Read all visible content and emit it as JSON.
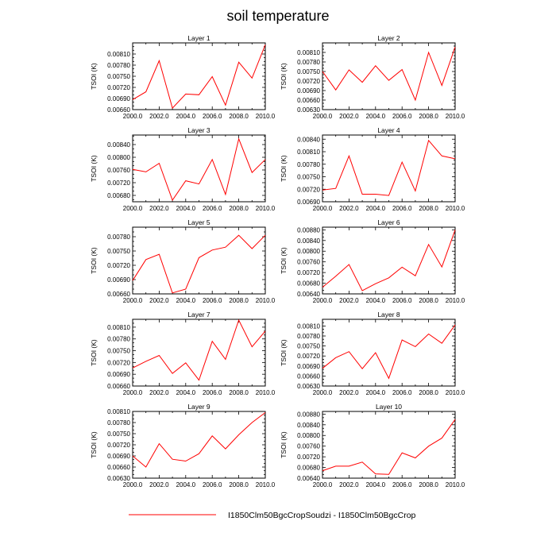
{
  "page_title": "soil temperature",
  "legend": {
    "label": "I1850Clm50BgcCropSoudzi - I1850Clm50BgcCrop",
    "color": "#ff0000"
  },
  "chart_data": [
    {
      "type": "line",
      "title": "Layer 1",
      "ylabel": "TSOI  (K)",
      "x": [
        2000,
        2001,
        2002,
        2003,
        2004,
        2005,
        2006,
        2007,
        2008,
        2009,
        2010
      ],
      "xlim": [
        2000,
        2010
      ],
      "xticks": [
        "2000.0",
        "2002.0",
        "2004.0",
        "2006.0",
        "2008.0",
        "2010.0"
      ],
      "ylim": [
        0.0066,
        0.0084
      ],
      "yticks": [
        "0.00660",
        "0.00690",
        "0.00720",
        "0.00750",
        "0.00780",
        "0.00810"
      ],
      "series": [
        {
          "color": "#ff0000",
          "values": [
            0.00687,
            0.00708,
            0.00792,
            0.00664,
            0.00702,
            0.007,
            0.00749,
            0.00672,
            0.00788,
            0.00745,
            0.00835
          ]
        }
      ]
    },
    {
      "type": "line",
      "title": "Layer 2",
      "ylabel": "TSOI  (K)",
      "x": [
        2000,
        2001,
        2002,
        2003,
        2004,
        2005,
        2006,
        2007,
        2008,
        2009,
        2010
      ],
      "xlim": [
        2000,
        2010
      ],
      "xticks": [
        "2000.0",
        "2002.0",
        "2004.0",
        "2006.0",
        "2008.0",
        "2010.0"
      ],
      "ylim": [
        0.0063,
        0.0084
      ],
      "yticks": [
        "0.00630",
        "0.00660",
        "0.00690",
        "0.00720",
        "0.00750",
        "0.00780",
        "0.00810"
      ],
      "series": [
        {
          "color": "#ff0000",
          "values": [
            0.0075,
            0.00692,
            0.00755,
            0.00716,
            0.00768,
            0.00722,
            0.00756,
            0.0066,
            0.0081,
            0.00706,
            0.00827
          ]
        }
      ]
    },
    {
      "type": "line",
      "title": "Layer 3",
      "ylabel": "TSOI  (K)",
      "x": [
        2000,
        2001,
        2002,
        2003,
        2004,
        2005,
        2006,
        2007,
        2008,
        2009,
        2010
      ],
      "xlim": [
        2000,
        2010
      ],
      "xticks": [
        "2000.0",
        "2002.0",
        "2004.0",
        "2006.0",
        "2008.0",
        "2010.0"
      ],
      "ylim": [
        0.0066,
        0.0087
      ],
      "yticks": [
        "0.00680",
        "0.00720",
        "0.00760",
        "0.00800",
        "0.00840"
      ],
      "series": [
        {
          "color": "#ff0000",
          "values": [
            0.00762,
            0.00754,
            0.00781,
            0.00665,
            0.00726,
            0.00716,
            0.00793,
            0.00683,
            0.00858,
            0.00752,
            0.00793
          ]
        }
      ]
    },
    {
      "type": "line",
      "title": "Layer 4",
      "ylabel": "TSOI  (K)",
      "x": [
        2000,
        2001,
        2002,
        2003,
        2004,
        2005,
        2006,
        2007,
        2008,
        2009,
        2010
      ],
      "xlim": [
        2000,
        2010
      ],
      "xticks": [
        "2000.0",
        "2002.0",
        "2004.0",
        "2006.0",
        "2008.0",
        "2010.0"
      ],
      "ylim": [
        0.0069,
        0.0085
      ],
      "yticks": [
        "0.00690",
        "0.00720",
        "0.00750",
        "0.00780",
        "0.00810",
        "0.00840"
      ],
      "series": [
        {
          "color": "#ff0000",
          "values": [
            0.00718,
            0.00722,
            0.008,
            0.00708,
            0.00708,
            0.00705,
            0.00785,
            0.00716,
            0.00837,
            0.008,
            0.00793
          ]
        }
      ]
    },
    {
      "type": "line",
      "title": "Layer 5",
      "ylabel": "TSOI  (K)",
      "x": [
        2000,
        2001,
        2002,
        2003,
        2004,
        2005,
        2006,
        2007,
        2008,
        2009,
        2010
      ],
      "xlim": [
        2000,
        2010
      ],
      "xticks": [
        "2000.0",
        "2002.0",
        "2004.0",
        "2006.0",
        "2008.0",
        "2010.0"
      ],
      "ylim": [
        0.0066,
        0.008
      ],
      "yticks": [
        "0.00660",
        "0.00690",
        "0.00720",
        "0.00750",
        "0.00780"
      ],
      "series": [
        {
          "color": "#ff0000",
          "values": [
            0.00688,
            0.00732,
            0.00743,
            0.00662,
            0.0067,
            0.00736,
            0.00752,
            0.00758,
            0.00783,
            0.00755,
            0.00783
          ]
        }
      ]
    },
    {
      "type": "line",
      "title": "Layer 6",
      "ylabel": "TSOI  (K)",
      "x": [
        2000,
        2001,
        2002,
        2003,
        2004,
        2005,
        2006,
        2007,
        2008,
        2009,
        2010
      ],
      "xlim": [
        2000,
        2010
      ],
      "xticks": [
        "2000.0",
        "2002.0",
        "2004.0",
        "2006.0",
        "2008.0",
        "2010.0"
      ],
      "ylim": [
        0.0064,
        0.0089
      ],
      "yticks": [
        "0.00640",
        "0.00680",
        "0.00720",
        "0.00760",
        "0.00800",
        "0.00840",
        "0.00880"
      ],
      "series": [
        {
          "color": "#ff0000",
          "values": [
            0.00665,
            0.00706,
            0.0075,
            0.00652,
            0.00678,
            0.007,
            0.0074,
            0.00708,
            0.00825,
            0.00741,
            0.0088
          ]
        }
      ]
    },
    {
      "type": "line",
      "title": "Layer 7",
      "ylabel": "TSOI  (K)",
      "x": [
        2000,
        2001,
        2002,
        2003,
        2004,
        2005,
        2006,
        2007,
        2008,
        2009,
        2010
      ],
      "xlim": [
        2000,
        2010
      ],
      "xticks": [
        "2000.0",
        "2002.0",
        "2004.0",
        "2006.0",
        "2008.0",
        "2010.0"
      ],
      "ylim": [
        0.0066,
        0.0083
      ],
      "yticks": [
        "0.00660",
        "0.00690",
        "0.00720",
        "0.00750",
        "0.00780",
        "0.00810"
      ],
      "series": [
        {
          "color": "#ff0000",
          "values": [
            0.00706,
            0.00723,
            0.00738,
            0.00692,
            0.00719,
            0.00675,
            0.00774,
            0.00728,
            0.00828,
            0.0076,
            0.008
          ]
        }
      ]
    },
    {
      "type": "line",
      "title": "Layer 8",
      "ylabel": "TSOI  (K)",
      "x": [
        2000,
        2001,
        2002,
        2003,
        2004,
        2005,
        2006,
        2007,
        2008,
        2009,
        2010
      ],
      "xlim": [
        2000,
        2010
      ],
      "xticks": [
        "2000.0",
        "2002.0",
        "2004.0",
        "2006.0",
        "2008.0",
        "2010.0"
      ],
      "ylim": [
        0.0063,
        0.0083
      ],
      "yticks": [
        "0.00630",
        "0.00660",
        "0.00690",
        "0.00720",
        "0.00750",
        "0.00780",
        "0.00810"
      ],
      "series": [
        {
          "color": "#ff0000",
          "values": [
            0.00683,
            0.00715,
            0.00733,
            0.00682,
            0.0073,
            0.00653,
            0.00768,
            0.00748,
            0.00786,
            0.00758,
            0.00813
          ]
        }
      ]
    },
    {
      "type": "line",
      "title": "Layer 9",
      "ylabel": "TSOI  (K)",
      "x": [
        2000,
        2001,
        2002,
        2003,
        2004,
        2005,
        2006,
        2007,
        2008,
        2009,
        2010
      ],
      "xlim": [
        2000,
        2010
      ],
      "xticks": [
        "2000.0",
        "2002.0",
        "2004.0",
        "2006.0",
        "2008.0",
        "2010.0"
      ],
      "ylim": [
        0.0063,
        0.0081
      ],
      "yticks": [
        "0.00630",
        "0.00660",
        "0.00690",
        "0.00720",
        "0.00750",
        "0.00780",
        "0.00810"
      ],
      "series": [
        {
          "color": "#ff0000",
          "values": [
            0.0069,
            0.0066,
            0.00723,
            0.00681,
            0.00676,
            0.00696,
            0.00744,
            0.00709,
            0.00747,
            0.0078,
            0.00807
          ]
        }
      ]
    },
    {
      "type": "line",
      "title": "Layer 10",
      "ylabel": "TSOI  (K)",
      "x": [
        2000,
        2001,
        2002,
        2003,
        2004,
        2005,
        2006,
        2007,
        2008,
        2009,
        2010
      ],
      "xlim": [
        2000,
        2010
      ],
      "xticks": [
        "2000.0",
        "2002.0",
        "2004.0",
        "2006.0",
        "2008.0",
        "2010.0"
      ],
      "ylim": [
        0.0064,
        0.0089
      ],
      "yticks": [
        "0.00640",
        "0.00680",
        "0.00720",
        "0.00760",
        "0.00800",
        "0.00840",
        "0.00880"
      ],
      "series": [
        {
          "color": "#ff0000",
          "values": [
            0.00668,
            0.00685,
            0.00685,
            0.007,
            0.00656,
            0.00654,
            0.00735,
            0.00716,
            0.0076,
            0.0079,
            0.0086
          ]
        }
      ]
    }
  ]
}
